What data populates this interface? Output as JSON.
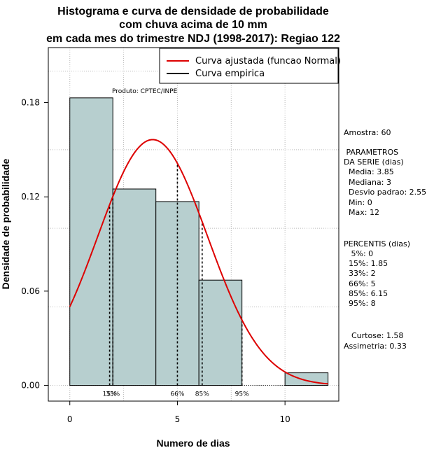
{
  "colors": {
    "bar_fill": "#b7cfcf",
    "curve": "#dd0000",
    "grid": "#bbbbbb",
    "axis": "#000000"
  },
  "chart_data": {
    "type": "bar",
    "title_lines": [
      "Histograma e curva de densidade de probabilidade",
      "com chuva acima de 10 mm",
      "em cada mes do trimestre NDJ (1998-2017): Regiao 122"
    ],
    "xlabel": "Numero de dias",
    "ylabel": "Densidade de probabilidade",
    "xlim": [
      -1,
      12.5
    ],
    "ylim": [
      -0.01,
      0.215
    ],
    "xticks": [
      0,
      5,
      10
    ],
    "yticks": [
      0.0,
      0.06,
      0.12,
      0.18
    ],
    "ytick_labels": [
      "0.00",
      "0.06",
      "0.12",
      "0.18"
    ],
    "bins": [
      {
        "from": 0,
        "to": 2,
        "density": 0.183
      },
      {
        "from": 2,
        "to": 4,
        "density": 0.125
      },
      {
        "from": 4,
        "to": 6,
        "density": 0.117
      },
      {
        "from": 6,
        "to": 8,
        "density": 0.067
      },
      {
        "from": 8,
        "to": 10,
        "density": 0.0
      },
      {
        "from": 10,
        "to": 12,
        "density": 0.008
      }
    ],
    "normal_fit": {
      "mean": 3.85,
      "sd": 2.55,
      "x_from": 0,
      "x_to": 12
    },
    "percentile_lines": [
      {
        "label": "15%",
        "x": 1.85
      },
      {
        "label": "33%",
        "x": 2
      },
      {
        "label": "66%",
        "x": 5
      },
      {
        "label": "85%",
        "x": 6.15
      },
      {
        "label": "95%",
        "x": 8
      }
    ],
    "legend": {
      "position": "top-right",
      "entries": [
        "Curva ajustada (funcao Normal)",
        "Curva empirica"
      ]
    },
    "credit": "Produto: CPTEC/INPE"
  },
  "stats": {
    "sample": "Amostra: 60",
    "params_header": [
      " PARAMETROS",
      "DA SERIE (dias)"
    ],
    "params": [
      "Media: 3.85",
      "Mediana: 3",
      "Desvio padrao: 2.55",
      "Min: 0",
      "Max: 12"
    ],
    "percentis_header": "PERCENTIS (dias)",
    "percentis": [
      " 5%: 0",
      "15%: 1.85",
      "33%: 2",
      "66%: 5",
      "85%: 6.15",
      "95%: 8"
    ],
    "curtose": "Curtose: 1.58",
    "assimetria": "Assimetria: 0.33"
  }
}
